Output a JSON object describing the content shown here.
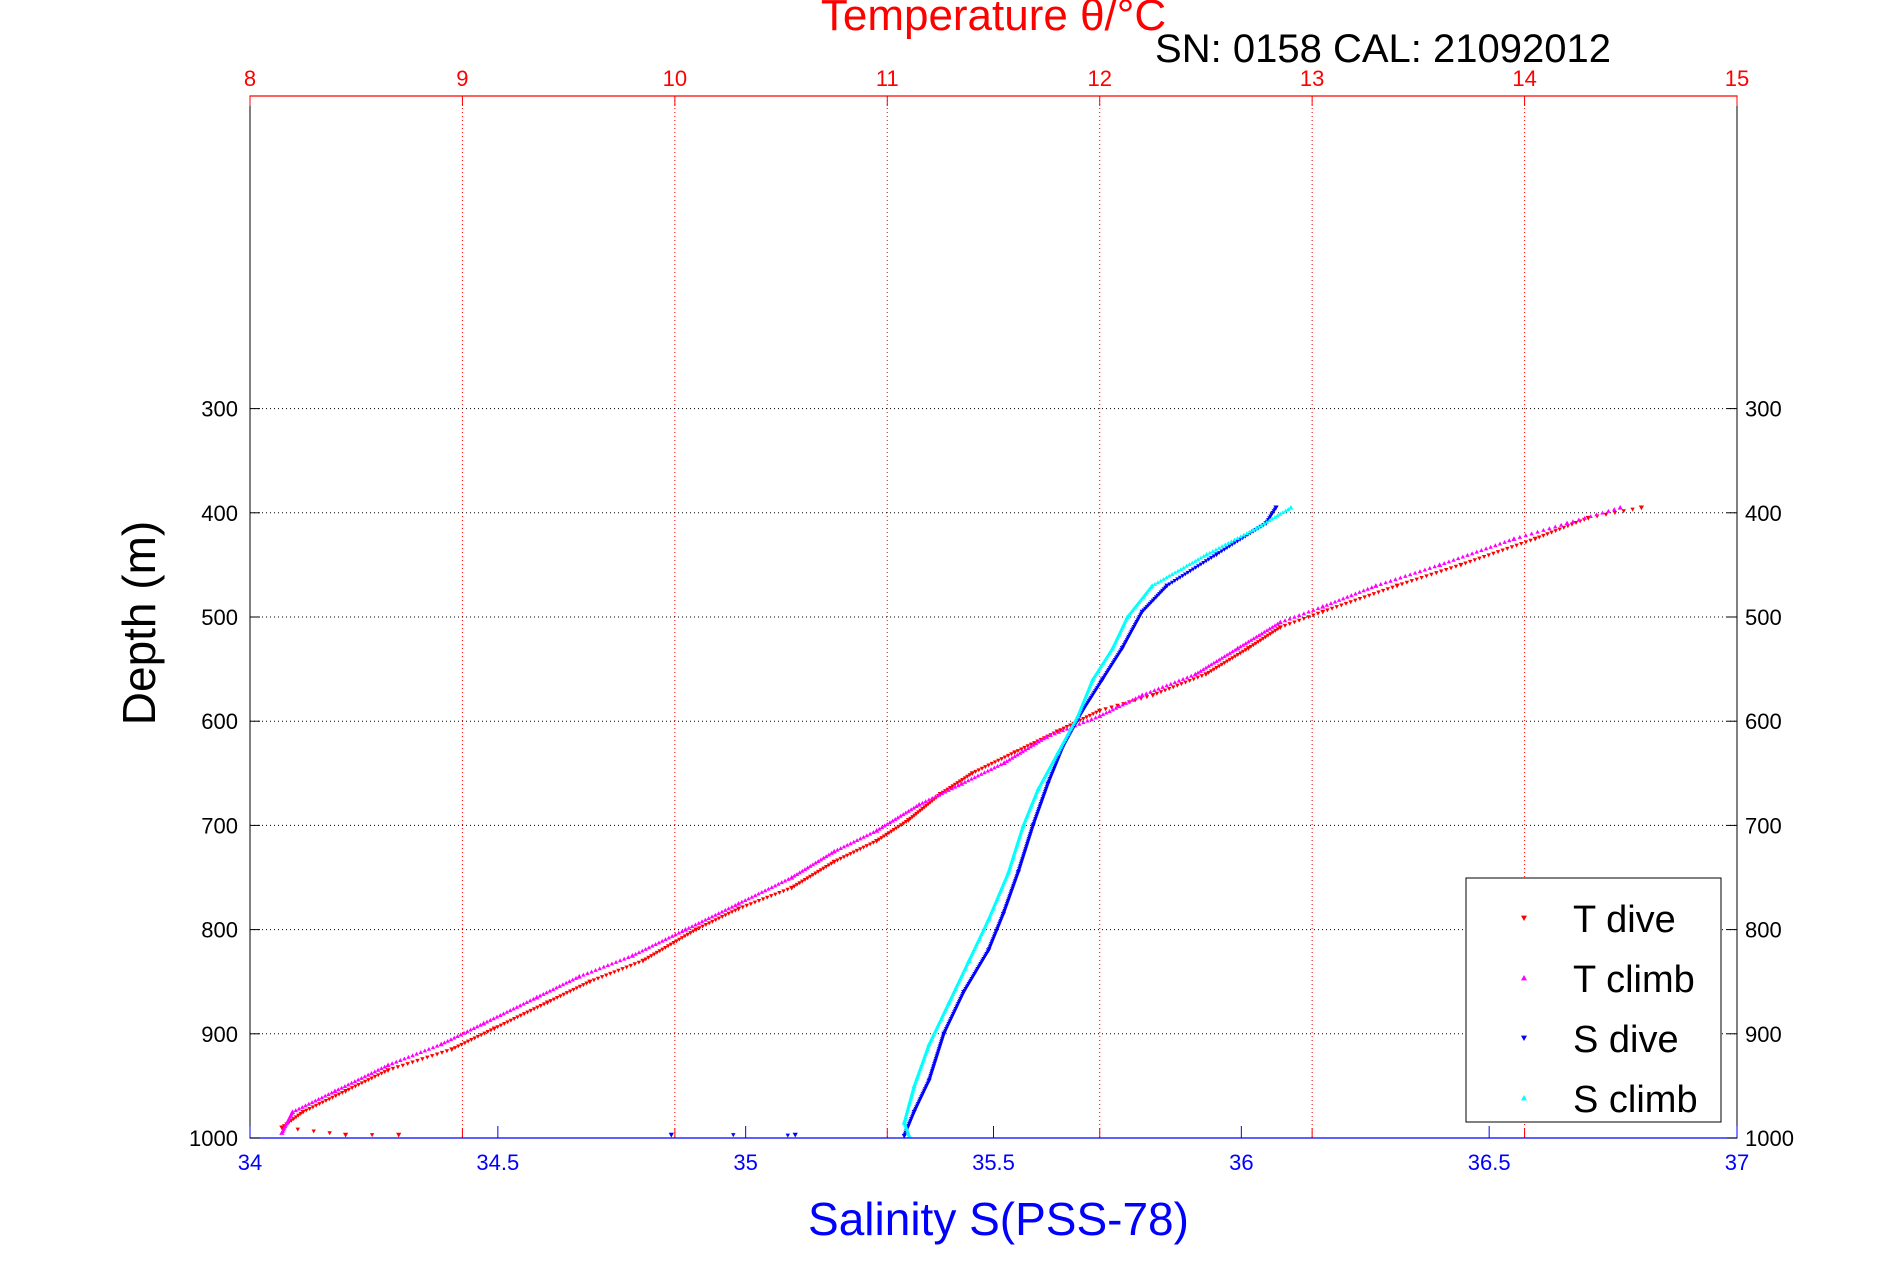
{
  "chart_data": {
    "type": "scatter",
    "title": "Temperature θ/°C",
    "annotation": "SN: 0158  CAL: 21092012",
    "xlabel": "Salinity S(PSS-78)",
    "ylabel": "Depth (m)",
    "top_axis": {
      "label": "Temperature θ/°C",
      "range": [
        8,
        15
      ],
      "ticks": [
        "8",
        "9",
        "10",
        "11",
        "12",
        "13",
        "14",
        "15"
      ],
      "color": "#ff0000"
    },
    "bottom_axis": {
      "label": "Salinity S(PSS-78)",
      "range": [
        34,
        37
      ],
      "ticks": [
        "34",
        "34.5",
        "35",
        "35.5",
        "36",
        "36.5",
        "37"
      ],
      "color": "#0000ff"
    },
    "y_axis": {
      "range": [
        0,
        1000
      ],
      "reversed": true,
      "ticks": [
        "300",
        "400",
        "500",
        "600",
        "700",
        "800",
        "900",
        "1000"
      ]
    },
    "grid": true,
    "legend_position": "bottom-right",
    "series": [
      {
        "name": "T dive",
        "axis": "temperature",
        "color": "#ff0000",
        "marker": "triangle-down",
        "points": [
          [
            14.55,
            395
          ],
          [
            14.3,
            405
          ],
          [
            14.05,
            425
          ],
          [
            13.7,
            450
          ],
          [
            13.4,
            470
          ],
          [
            13.05,
            495
          ],
          [
            12.85,
            510
          ],
          [
            12.7,
            530
          ],
          [
            12.5,
            555
          ],
          [
            12.25,
            575
          ],
          [
            12.0,
            590
          ],
          [
            11.8,
            610
          ],
          [
            11.6,
            630
          ],
          [
            11.4,
            650
          ],
          [
            11.25,
            670
          ],
          [
            11.1,
            695
          ],
          [
            10.95,
            715
          ],
          [
            10.75,
            735
          ],
          [
            10.55,
            760
          ],
          [
            10.3,
            780
          ],
          [
            10.1,
            800
          ],
          [
            9.85,
            830
          ],
          [
            9.6,
            850
          ],
          [
            9.4,
            870
          ],
          [
            9.15,
            895
          ],
          [
            8.95,
            915
          ],
          [
            8.65,
            935
          ],
          [
            8.45,
            955
          ],
          [
            8.25,
            975
          ],
          [
            8.15,
            990
          ],
          [
            8.45,
            997
          ],
          [
            8.7,
            997
          ]
        ]
      },
      {
        "name": "T climb",
        "axis": "temperature",
        "color": "#ff00ff",
        "marker": "triangle-up",
        "points": [
          [
            14.45,
            395
          ],
          [
            14.2,
            410
          ],
          [
            13.95,
            425
          ],
          [
            13.6,
            450
          ],
          [
            13.3,
            470
          ],
          [
            13.05,
            490
          ],
          [
            12.85,
            505
          ],
          [
            12.65,
            530
          ],
          [
            12.45,
            555
          ],
          [
            12.2,
            575
          ],
          [
            12.0,
            595
          ],
          [
            11.75,
            615
          ],
          [
            11.55,
            640
          ],
          [
            11.35,
            660
          ],
          [
            11.15,
            680
          ],
          [
            10.95,
            705
          ],
          [
            10.75,
            725
          ],
          [
            10.55,
            750
          ],
          [
            10.3,
            775
          ],
          [
            10.05,
            800
          ],
          [
            9.8,
            825
          ],
          [
            9.55,
            845
          ],
          [
            9.35,
            865
          ],
          [
            9.1,
            890
          ],
          [
            8.9,
            910
          ],
          [
            8.65,
            930
          ],
          [
            8.4,
            955
          ],
          [
            8.2,
            975
          ],
          [
            8.15,
            995
          ]
        ]
      },
      {
        "name": "S dive",
        "axis": "salinity",
        "color": "#0000ff",
        "marker": "triangle-down",
        "points": [
          [
            36.07,
            395
          ],
          [
            36.05,
            410
          ],
          [
            35.95,
            440
          ],
          [
            35.85,
            470
          ],
          [
            35.8,
            495
          ],
          [
            35.76,
            530
          ],
          [
            35.72,
            560
          ],
          [
            35.68,
            590
          ],
          [
            35.64,
            625
          ],
          [
            35.61,
            660
          ],
          [
            35.58,
            700
          ],
          [
            35.55,
            745
          ],
          [
            35.52,
            785
          ],
          [
            35.49,
            820
          ],
          [
            35.44,
            860
          ],
          [
            35.4,
            900
          ],
          [
            35.37,
            945
          ],
          [
            35.34,
            975
          ],
          [
            35.32,
            998
          ],
          [
            34.85,
            997
          ],
          [
            35.1,
            997
          ]
        ]
      },
      {
        "name": "S climb",
        "axis": "salinity",
        "color": "#00ffff",
        "marker": "triangle-up",
        "points": [
          [
            36.1,
            395
          ],
          [
            36.03,
            415
          ],
          [
            35.93,
            440
          ],
          [
            35.82,
            470
          ],
          [
            35.77,
            500
          ],
          [
            35.74,
            530
          ],
          [
            35.7,
            560
          ],
          [
            35.67,
            595
          ],
          [
            35.63,
            630
          ],
          [
            35.59,
            665
          ],
          [
            35.56,
            700
          ],
          [
            35.53,
            745
          ],
          [
            35.49,
            790
          ],
          [
            35.45,
            830
          ],
          [
            35.41,
            870
          ],
          [
            35.37,
            910
          ],
          [
            35.34,
            950
          ],
          [
            35.32,
            985
          ],
          [
            35.33,
            998
          ]
        ]
      }
    ]
  }
}
